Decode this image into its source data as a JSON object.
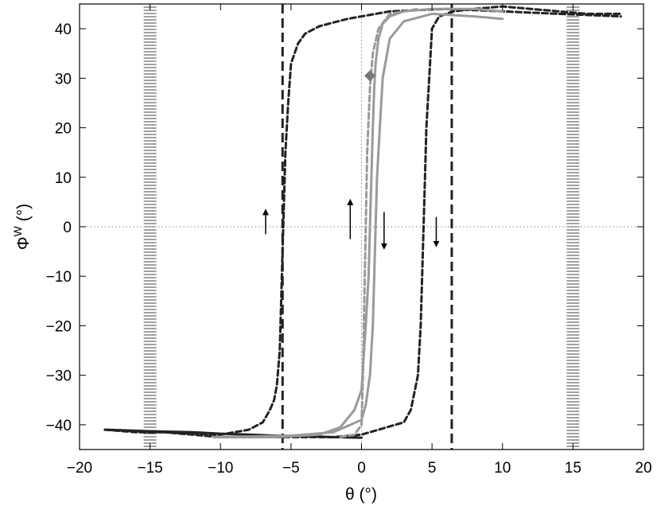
{
  "chart_data": {
    "type": "line",
    "title": "",
    "xlabel": "θ (°)",
    "ylabel_base": "Φ",
    "ylabel_sup": "W",
    "ylabel_unit": " (°)",
    "xlim": [
      -20,
      20
    ],
    "ylim": [
      -45,
      45
    ],
    "xticks": [
      -20,
      -15,
      -10,
      -5,
      0,
      5,
      10,
      15,
      20
    ],
    "yticks": [
      -40,
      -30,
      -20,
      -10,
      0,
      10,
      20,
      30,
      40
    ],
    "xtick_labels": [
      "−20",
      "−15",
      "−10",
      "−5",
      "0",
      "5",
      "10",
      "15",
      "20"
    ],
    "ytick_labels": [
      "−40",
      "−30",
      "−20",
      "−10",
      "0",
      "10",
      "20",
      "30",
      "40"
    ],
    "grid": false,
    "reference_lines": {
      "horizontal_dotted_y": 0,
      "vertical_dotted_x": 0,
      "vertical_dashed_x": [
        -5.6,
        6.4
      ],
      "hatched_bands_x": [
        -15,
        15
      ]
    },
    "series": [
      {
        "color": "#222222",
        "style": "dashed",
        "x": [
          -18.2,
          -16,
          -14,
          -12,
          -10,
          -8,
          -7,
          -6.5,
          -6.2,
          -6.0,
          -5.8,
          -5.7,
          -5.6,
          -5.5,
          -5.4,
          -5.2,
          -5.0,
          -4.5,
          -4.0,
          -3.0,
          -1.0,
          2.0,
          6.0,
          10.0,
          14.0,
          18.4
        ],
        "y": [
          -41,
          -41.5,
          -41.5,
          -41.8,
          -42,
          -41,
          -39.5,
          -37,
          -35,
          -32,
          -25,
          -15,
          -5,
          5,
          15,
          25,
          33,
          37,
          39,
          40.5,
          42,
          43.5,
          44,
          43.5,
          43,
          42.5
        ]
      },
      {
        "color": "#222222",
        "style": "dashed",
        "x": [
          18.3,
          16,
          14,
          12,
          10,
          8,
          6.5,
          5.5,
          5.0,
          4.8,
          4.6,
          4.5,
          4.4,
          4.3,
          4.2,
          4.0,
          3.5,
          3.0,
          0,
          -2,
          -5,
          -8,
          -10,
          -12,
          -14,
          -16,
          -18.2
        ],
        "y": [
          43,
          43,
          43.5,
          44,
          44.5,
          44,
          43.5,
          42.5,
          40,
          30,
          20,
          10,
          0,
          -10,
          -20,
          -30,
          -37,
          -39.5,
          -42,
          -42.5,
          -42.5,
          -42.5,
          -42.5,
          -42,
          -41.5,
          -41.3,
          -41
        ]
      },
      {
        "color": "#222222",
        "style": "solid",
        "x": [
          -18,
          -15,
          -12,
          -10,
          -8,
          -6,
          -4,
          -2,
          0
        ],
        "y": [
          -41,
          -41.3,
          -41.5,
          -41.8,
          -42,
          -42.2,
          -42.3,
          -42.5,
          -42.6
        ]
      },
      {
        "color": "#9a9a9a",
        "style": "solid",
        "x": [
          -10.5,
          -6,
          -3,
          -1.5,
          -0.5,
          0,
          0.3,
          0.5,
          0.6,
          0.7,
          0.8,
          0.9,
          1.0,
          1.2,
          1.5,
          2,
          3,
          5,
          8,
          10
        ],
        "y": [
          -42.5,
          -42.5,
          -42,
          -40.5,
          -37,
          -33,
          -20,
          -10,
          0,
          10,
          20,
          28,
          33,
          38,
          41,
          42.5,
          43.5,
          44,
          44,
          43.5
        ]
      },
      {
        "color": "#9a9a9a",
        "style": "solid",
        "x": [
          10,
          8,
          5,
          3,
          2,
          1.5,
          1.3,
          1.1,
          1.0,
          0.9,
          0.8,
          0.6,
          0.3,
          0,
          -2,
          -5,
          -10.5
        ],
        "y": [
          42,
          42.5,
          43,
          41.5,
          38,
          30,
          20,
          10,
          0,
          -10,
          -20,
          -30,
          -36,
          -39,
          -41.5,
          -42.2,
          -42.5
        ]
      },
      {
        "color": "#9a9a9a",
        "style": "dashed",
        "x": [
          -1.5,
          -0.5,
          0,
          0.1,
          0.2,
          0.3,
          0.4,
          0.6,
          0.8,
          1.2,
          2,
          4
        ],
        "y": [
          -42.5,
          -42,
          -40,
          -30,
          -15,
          0,
          15,
          28,
          35,
          40,
          43,
          44
        ]
      }
    ],
    "markers": [
      {
        "shape": "diamond",
        "color": "#777777",
        "x": 0.6,
        "y": 30.5
      }
    ],
    "annotations": [
      {
        "type": "arrow",
        "direction": "up",
        "x": -6.8,
        "y_from": -1.5,
        "y_to": 3
      },
      {
        "type": "arrow",
        "direction": "up",
        "x": -0.8,
        "y_from": -2.5,
        "y_to": 5
      },
      {
        "type": "arrow",
        "direction": "down",
        "x": 1.6,
        "y_from": 3,
        "y_to": -4
      },
      {
        "type": "arrow",
        "direction": "down",
        "x": 5.3,
        "y_from": 2,
        "y_to": -3.5
      }
    ]
  }
}
